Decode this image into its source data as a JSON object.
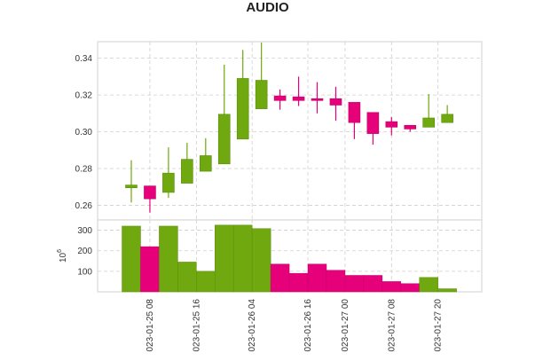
{
  "chart_data": {
    "type": "candlestick",
    "title": "AUDIO",
    "colors": {
      "up": "#6fa80f",
      "down": "#e6007a",
      "up_edge": "#5a8f0a",
      "down_edge": "#c4006a"
    },
    "x_ticks": [
      "023-01-25 08",
      "023-01-25 16",
      "023-01-26 04",
      "023-01-26 16",
      "023-01-27 00",
      "023-01-27 08",
      "023-01-27 20"
    ],
    "x_tick_positions": [
      1,
      3.5,
      6.5,
      9.5,
      11.5,
      14,
      16.5
    ],
    "price_panel": {
      "ylim": [
        0.252,
        0.349
      ],
      "yticks": [
        "0.26",
        "0.28",
        "0.30",
        "0.32",
        "0.34"
      ],
      "candles": [
        {
          "o": 0.2695,
          "h": 0.2845,
          "l": 0.2615,
          "c": 0.271
        },
        {
          "o": 0.2705,
          "h": 0.27,
          "l": 0.256,
          "c": 0.2635
        },
        {
          "o": 0.267,
          "h": 0.2915,
          "l": 0.264,
          "c": 0.2775
        },
        {
          "o": 0.272,
          "h": 0.294,
          "l": 0.272,
          "c": 0.285
        },
        {
          "o": 0.2785,
          "h": 0.2965,
          "l": 0.2785,
          "c": 0.287
        },
        {
          "o": 0.2825,
          "h": 0.3365,
          "l": 0.2825,
          "c": 0.3095
        },
        {
          "o": 0.296,
          "h": 0.3445,
          "l": 0.296,
          "c": 0.329
        },
        {
          "o": 0.3125,
          "h": 0.3485,
          "l": 0.3125,
          "c": 0.328
        },
        {
          "o": 0.3195,
          "h": 0.323,
          "l": 0.312,
          "c": 0.317
        },
        {
          "o": 0.319,
          "h": 0.33,
          "l": 0.314,
          "c": 0.317
        },
        {
          "o": 0.318,
          "h": 0.327,
          "l": 0.31,
          "c": 0.317
        },
        {
          "o": 0.318,
          "h": 0.3245,
          "l": 0.306,
          "c": 0.3145
        },
        {
          "o": 0.316,
          "h": 0.316,
          "l": 0.296,
          "c": 0.305
        },
        {
          "o": 0.3105,
          "h": 0.3105,
          "l": 0.293,
          "c": 0.299
        },
        {
          "o": 0.3055,
          "h": 0.308,
          "l": 0.298,
          "c": 0.3025
        },
        {
          "o": 0.3035,
          "h": 0.3035,
          "l": 0.3,
          "c": 0.3015
        },
        {
          "o": 0.3025,
          "h": 0.3205,
          "l": 0.3025,
          "c": 0.3075
        },
        {
          "o": 0.305,
          "h": 0.3145,
          "l": 0.305,
          "c": 0.3095
        }
      ]
    },
    "volume_panel": {
      "ylabel": "10^6",
      "ylim": [
        0,
        350
      ],
      "yticks": [
        "100",
        "200",
        "300"
      ],
      "values": [
        320,
        220,
        320,
        145,
        100,
        325,
        325,
        308,
        135,
        90,
        135,
        105,
        80,
        80,
        50,
        40,
        70,
        15
      ]
    }
  }
}
